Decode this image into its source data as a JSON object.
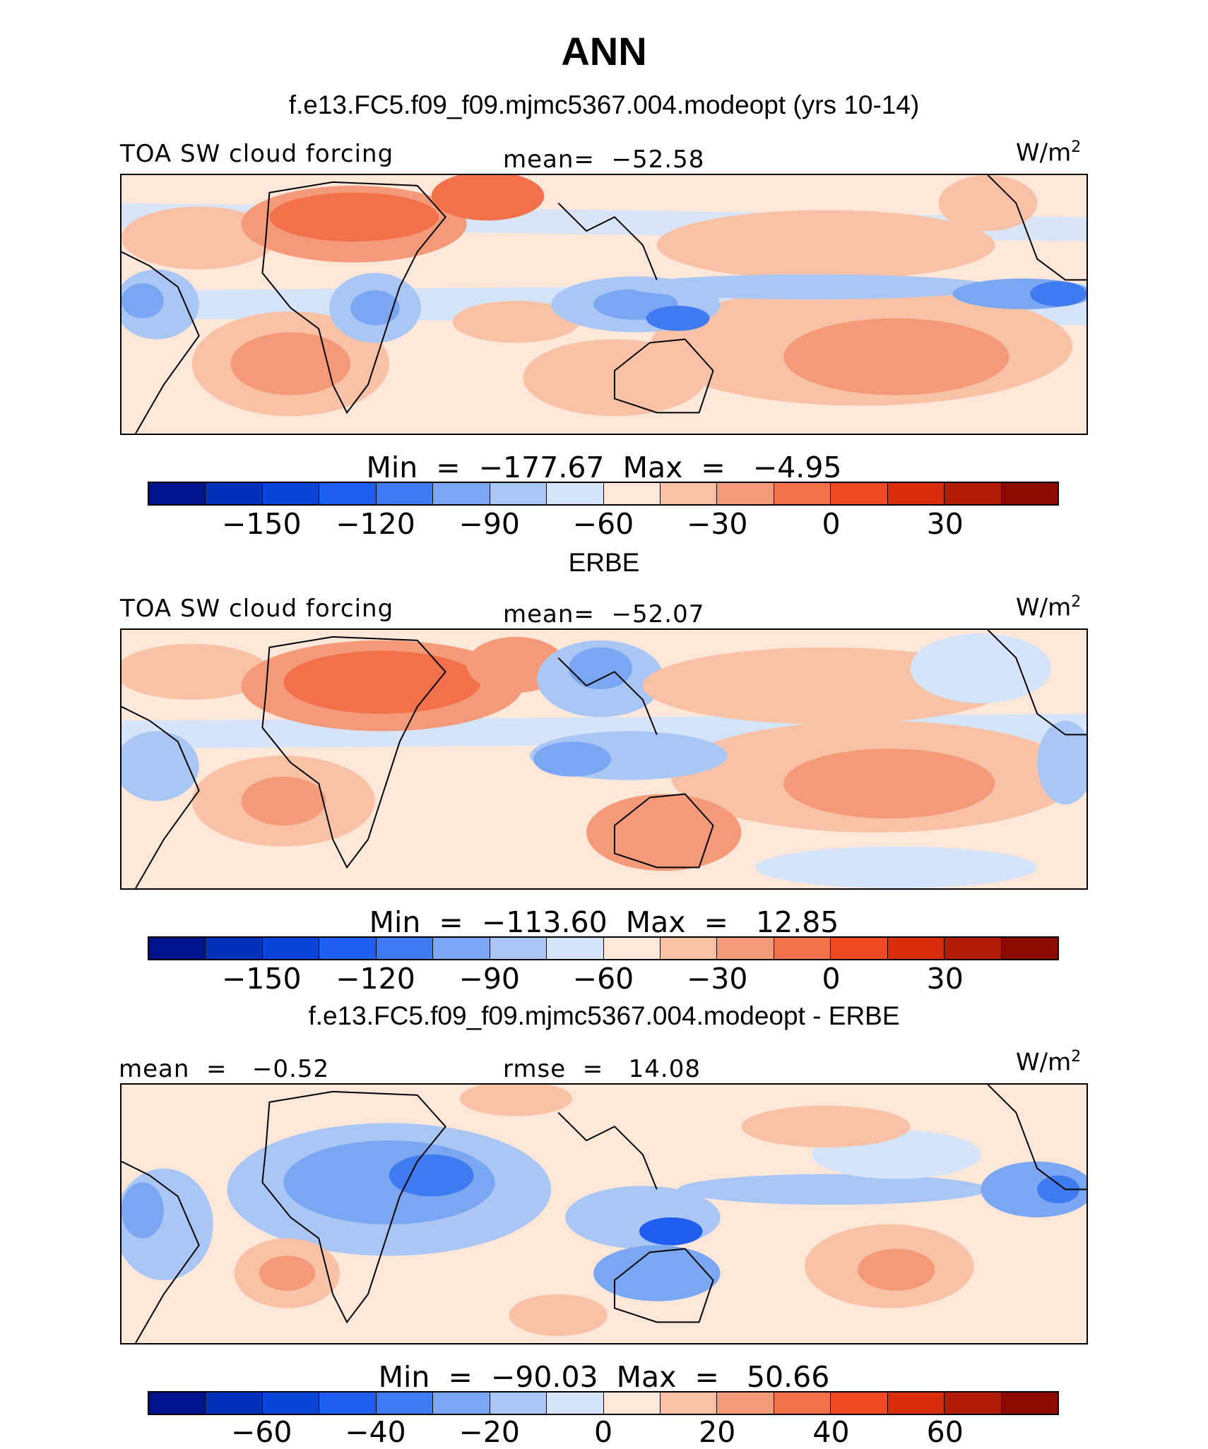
{
  "title": "ANN",
  "panels": [
    {
      "subtitle": "f.e13.FC5.f09_f09.mjmc5367.004.modeopt (yrs 10-14)",
      "left_label": "TOA SW cloud forcing",
      "center_label": "mean=  −52.58",
      "units": "W/m",
      "units_sup": "2",
      "minmax": "Min  =  −177.67  Max  =   −4.95",
      "colorbar_ticks": [
        "−150",
        "−120",
        "−90",
        "−60",
        "−30",
        "0",
        "30"
      ]
    },
    {
      "subtitle": "ERBE",
      "left_label": "TOA SW cloud forcing",
      "center_label": "mean=  −52.07",
      "units": "W/m",
      "units_sup": "2",
      "minmax": "Min  =  −113.60  Max  =   12.85",
      "colorbar_ticks": [
        "−150",
        "−120",
        "−90",
        "−60",
        "−30",
        "0",
        "30"
      ]
    },
    {
      "subtitle": "f.e13.FC5.f09_f09.mjmc5367.004.modeopt - ERBE",
      "left_label": "mean  =   −0.52",
      "center_label": "rmse  =   14.08",
      "units": "W/m",
      "units_sup": "2",
      "minmax": "Min  =  −90.03  Max  =   50.66",
      "colorbar_ticks": [
        "−60",
        "−40",
        "−20",
        "0",
        "20",
        "40",
        "60"
      ]
    }
  ],
  "chart_data": {
    "type": "heatmap",
    "title": "ANN",
    "variable": "TOA SW cloud forcing",
    "units": "W/m2",
    "maps": [
      {
        "name": "f.e13.FC5.f09_f09.mjmc5367.004.modeopt (yrs 10-14)",
        "mean": -52.58,
        "min": -177.67,
        "max": -4.95,
        "levels": [
          -165,
          -150,
          -135,
          -120,
          -105,
          -90,
          -75,
          -60,
          -45,
          -30,
          -15,
          0,
          15,
          30,
          45
        ]
      },
      {
        "name": "ERBE",
        "mean": -52.07,
        "min": -113.6,
        "max": 12.85,
        "levels": [
          -165,
          -150,
          -135,
          -120,
          -105,
          -90,
          -75,
          -60,
          -45,
          -30,
          -15,
          0,
          15,
          30,
          45
        ]
      },
      {
        "name": "f.e13.FC5.f09_f09.mjmc5367.004.modeopt - ERBE",
        "mean": -0.52,
        "rmse": 14.08,
        "min": -90.03,
        "max": 50.66,
        "levels": [
          -70,
          -60,
          -50,
          -40,
          -30,
          -20,
          -10,
          0,
          10,
          20,
          30,
          40,
          50,
          60,
          70
        ]
      }
    ]
  },
  "colors": {
    "palette": [
      "#00128a",
      "#0330b8",
      "#0a44d6",
      "#1e5ff0",
      "#3f7bf0",
      "#7aa6f2",
      "#a9c6f5",
      "#d5e4f9",
      "#fde7d9",
      "#f9c2a7",
      "#f49a79",
      "#f2704a",
      "#ee4a22",
      "#d92e0b",
      "#b01d06",
      "#8b0a00"
    ]
  }
}
